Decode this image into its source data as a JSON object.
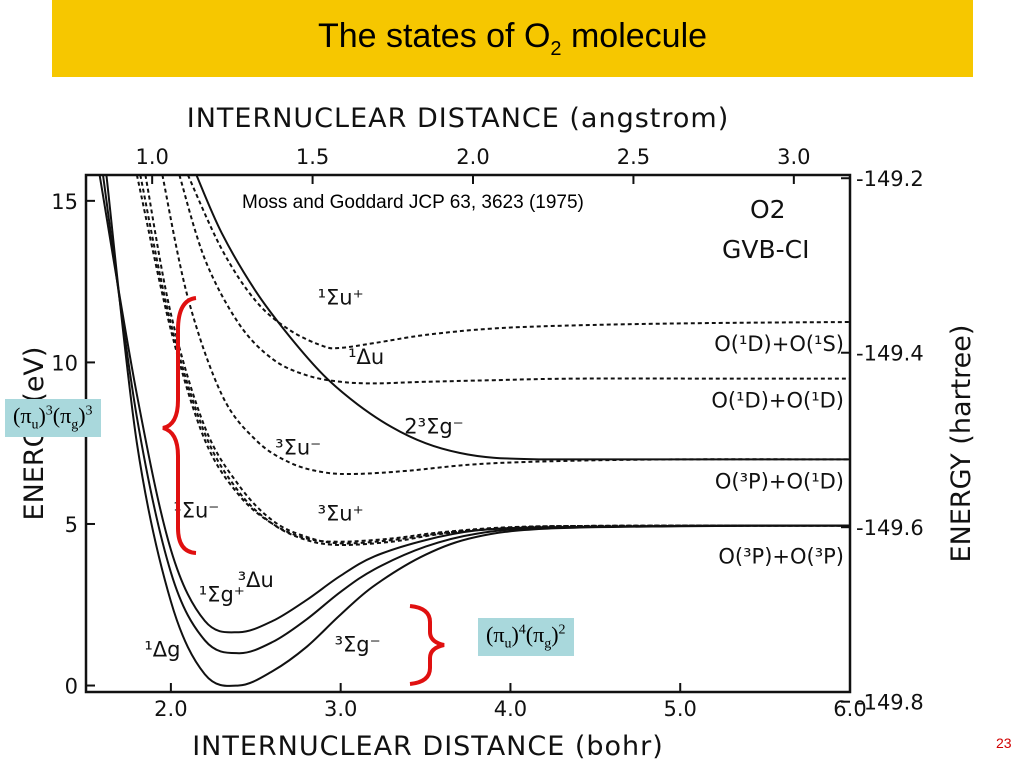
{
  "slide": {
    "title_main": "The states of O",
    "title_sub": "2",
    "title_rest": " molecule",
    "page_number": "23"
  },
  "annotations": {
    "citation": "Moss and Goddard JCP 63, 3623 (1975)",
    "method_line1": "O2",
    "method_line2": "GVB-CI"
  },
  "callouts": {
    "excited": {
      "pi_u_exp": "3",
      "pi_g_exp": "3"
    },
    "ground": {
      "pi_u_exp": "4",
      "pi_g_exp": "2"
    }
  },
  "chart_data": {
    "type": "line",
    "title": "",
    "top_axis_label": "INTERNUCLEAR DISTANCE (angstrom)",
    "top_ticks": [
      "1.0",
      "1.5",
      "2.0",
      "2.5",
      "3.0"
    ],
    "top_tick_values_bohr": [
      1.8897,
      2.8346,
      3.7795,
      4.7244,
      5.6692
    ],
    "xlabel": "INTERNUCLEAR DISTANCE (bohr)",
    "x_ticks": [
      "2.0",
      "3.0",
      "4.0",
      "5.0",
      "6.0"
    ],
    "xlim": [
      1.5,
      6.0
    ],
    "ylabel": "ENERGY (eV)",
    "y_ticks": [
      "0",
      "5",
      "10",
      "15"
    ],
    "ylim": [
      -0.2,
      15.8
    ],
    "right_axis_label": "ENERGY (hartree)",
    "right_ticks": [
      "-149.2",
      "-149.4",
      "-149.6",
      "-149.8"
    ],
    "right_tick_values_ev": [
      15.7,
      10.3,
      4.9,
      -0.5
    ],
    "asymptotes": [
      {
        "label": "O(¹D)+O(¹S)",
        "y": 11.25
      },
      {
        "label": "O(¹D)+O(¹D)",
        "y": 9.5
      },
      {
        "label": "O(³P)+O(¹D)",
        "y": 7.0
      },
      {
        "label": "O(³P)+O(³P)",
        "y": 4.95
      }
    ],
    "series": [
      {
        "name": "X ³Σg⁻",
        "style": "solid",
        "x": [
          1.62,
          1.8,
          2.0,
          2.2,
          2.4,
          2.6,
          2.8,
          3.0,
          3.2,
          3.5,
          3.8,
          4.2,
          5.0,
          6.0
        ],
        "y": [
          15.8,
          7.5,
          2.6,
          0.35,
          0.0,
          0.45,
          1.2,
          2.2,
          3.1,
          4.05,
          4.6,
          4.85,
          4.93,
          4.95
        ]
      },
      {
        "name": "a ¹Δg",
        "style": "solid",
        "x": [
          1.6,
          1.8,
          2.0,
          2.2,
          2.4,
          2.6,
          2.8,
          3.0,
          3.2,
          3.5,
          3.8,
          4.2,
          5.0,
          6.0
        ],
        "y": [
          15.8,
          8.3,
          3.5,
          1.4,
          1.0,
          1.35,
          2.05,
          2.9,
          3.6,
          4.3,
          4.7,
          4.88,
          4.94,
          4.95
        ]
      },
      {
        "name": "b ¹Σg⁺",
        "style": "solid",
        "x": [
          1.58,
          1.8,
          2.0,
          2.2,
          2.4,
          2.6,
          2.8,
          3.0,
          3.2,
          3.5,
          3.8,
          4.2,
          5.0,
          6.0
        ],
        "y": [
          15.8,
          9.0,
          4.2,
          2.0,
          1.65,
          2.0,
          2.65,
          3.4,
          4.0,
          4.5,
          4.8,
          4.9,
          4.94,
          4.95
        ]
      },
      {
        "name": "¹Σu⁻",
        "style": "dashed",
        "x": [
          1.8,
          2.0,
          2.2,
          2.4,
          2.6,
          2.8,
          3.0,
          3.3,
          3.6,
          4.0,
          4.5,
          6.0
        ],
        "y": [
          15.8,
          11.0,
          7.6,
          5.9,
          5.0,
          4.55,
          4.45,
          4.55,
          4.75,
          4.9,
          4.94,
          4.95
        ]
      },
      {
        "name": "³Δu",
        "style": "dashed",
        "x": [
          1.82,
          2.0,
          2.2,
          2.4,
          2.6,
          2.8,
          3.0,
          3.3,
          3.6,
          4.0,
          4.5,
          6.0
        ],
        "y": [
          15.8,
          11.2,
          7.8,
          6.0,
          5.0,
          4.5,
          4.35,
          4.45,
          4.7,
          4.88,
          4.94,
          4.95
        ]
      },
      {
        "name": "³Σu⁺",
        "style": "dashed",
        "x": [
          1.85,
          2.0,
          2.2,
          2.4,
          2.6,
          2.8,
          3.0,
          3.3,
          3.6,
          4.0,
          4.5,
          6.0
        ],
        "y": [
          15.8,
          11.5,
          8.0,
          6.2,
          5.1,
          4.6,
          4.4,
          4.5,
          4.72,
          4.88,
          4.94,
          4.95
        ]
      },
      {
        "name": "B ³Σu⁻",
        "style": "dashed",
        "x": [
          1.95,
          2.1,
          2.3,
          2.5,
          2.7,
          2.9,
          3.1,
          3.4,
          3.8,
          4.3,
          5.0,
          6.0
        ],
        "y": [
          15.8,
          12.0,
          9.0,
          7.6,
          6.9,
          6.6,
          6.55,
          6.65,
          6.85,
          6.95,
          7.0,
          7.0
        ]
      },
      {
        "name": "¹Δu",
        "style": "dashed",
        "x": [
          2.05,
          2.2,
          2.4,
          2.6,
          2.8,
          3.0,
          3.2,
          3.5,
          3.9,
          4.4,
          5.2,
          6.0
        ],
        "y": [
          15.8,
          13.2,
          11.2,
          10.1,
          9.6,
          9.4,
          9.35,
          9.4,
          9.45,
          9.5,
          9.5,
          9.5
        ]
      },
      {
        "name": "¹Σu⁺",
        "style": "dashed",
        "x": [
          2.1,
          2.3,
          2.5,
          2.7,
          2.9,
          3.0,
          3.2,
          3.5,
          3.9,
          4.4,
          5.2,
          6.0
        ],
        "y": [
          15.8,
          13.5,
          11.9,
          11.0,
          10.5,
          10.45,
          10.6,
          10.85,
          11.05,
          11.15,
          11.22,
          11.25
        ]
      },
      {
        "name": "2³Σg⁻",
        "style": "solid",
        "x": [
          2.15,
          2.3,
          2.5,
          2.7,
          2.9,
          3.1,
          3.3,
          3.5,
          3.7,
          3.9,
          4.2,
          4.6,
          5.2,
          6.0
        ],
        "y": [
          15.8,
          14.0,
          12.2,
          10.8,
          9.6,
          8.7,
          8.0,
          7.5,
          7.2,
          7.05,
          7.0,
          7.0,
          7.0,
          7.0
        ]
      }
    ],
    "state_labels": [
      {
        "text": "¹Σu⁺",
        "x": 3.0,
        "y": 11.8
      },
      {
        "text": "¹Δu",
        "x": 3.15,
        "y": 9.95
      },
      {
        "text": "2³Σg⁻",
        "x": 3.55,
        "y": 7.8
      },
      {
        "text": "³Σu⁻",
        "x": 2.75,
        "y": 7.15
      },
      {
        "text": "¹Σu⁻",
        "x": 2.15,
        "y": 5.2
      },
      {
        "text": "³Σu⁺",
        "x": 3.0,
        "y": 5.1
      },
      {
        "text": "³Δu",
        "x": 2.5,
        "y": 3.05
      },
      {
        "text": "¹Σg⁺",
        "x": 2.3,
        "y": 2.6
      },
      {
        "text": "¹Δg",
        "x": 1.95,
        "y": 0.9
      },
      {
        "text": "³Σg⁻",
        "x": 3.1,
        "y": 1.05
      }
    ],
    "grid": false,
    "legend": "none"
  }
}
